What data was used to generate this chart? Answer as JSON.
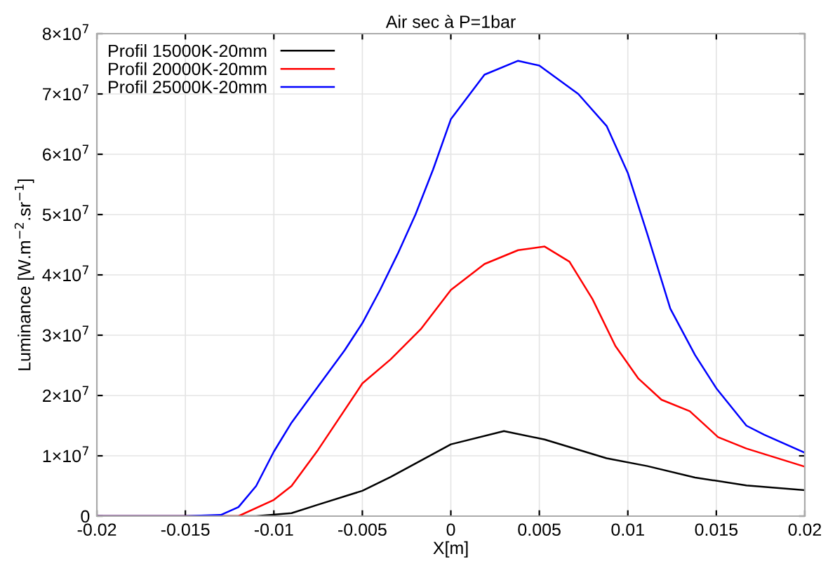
{
  "chart_data": {
    "type": "line",
    "title": "Air sec à P=1bar",
    "xlabel": "X[m]",
    "ylabel": "Luminance [W.m$^{−2}$.sr$^{−1}$]",
    "xlim": [
      -0.02,
      0.02
    ],
    "xticks": [
      -0.02,
      -0.015,
      -0.01,
      -0.005,
      0,
      0.005,
      0.01,
      0.015,
      0.02
    ],
    "ylim": [
      0,
      80000000
    ],
    "yticks": [
      0,
      {
        "value": 10000000,
        "label": "1×10$^{7}$"
      },
      {
        "value": 20000000,
        "label": "2×10$^{7}$"
      },
      {
        "value": 30000000,
        "label": "3×10$^{7}$"
      },
      {
        "value": 40000000,
        "label": "4×10$^{7}$"
      },
      {
        "value": 50000000,
        "label": "5×10$^{7}$"
      },
      {
        "value": 60000000,
        "label": "6×10$^{7}$"
      },
      {
        "value": 70000000,
        "label": "7×10$^{7}$"
      },
      {
        "value": 80000000,
        "label": "8×10$^{7}$"
      }
    ],
    "grid": true,
    "legend": "top left",
    "line_style": "solid",
    "series": [
      {
        "name": "Profil 15000K-20mm",
        "color": "#000000",
        "x": [
          -0.02,
          -0.015,
          -0.011,
          -0.009,
          -0.0075,
          -0.005,
          -0.0034,
          -0.0017,
          0,
          0.003,
          0.0053,
          0.0088,
          0.0111,
          0.0138,
          0.0167,
          0.02
        ],
        "values": [
          0,
          0,
          0,
          500000,
          1900000,
          4200000,
          6500000,
          9200000,
          11900000,
          14100000,
          12700000,
          9600000,
          8300000,
          6400000,
          5100000,
          4300000
        ]
      },
      {
        "name": "Profil 20000K-20mm",
        "color": "#ff0000",
        "x": [
          -0.02,
          -0.015,
          -0.012,
          -0.01,
          -0.009,
          -0.0075,
          -0.005,
          -0.0034,
          -0.0017,
          0,
          0.0019,
          0.0038,
          0.0053,
          0.0067,
          0.008,
          0.0093,
          0.0106,
          0.0119,
          0.0135,
          0.0151,
          0.0167,
          0.02
        ],
        "values": [
          0,
          0,
          0,
          2700000,
          5000000,
          11000000,
          22000000,
          26000000,
          31000000,
          37500000,
          41800000,
          44100000,
          44700000,
          42200000,
          36000000,
          28200000,
          22800000,
          19300000,
          17400000,
          13100000,
          11200000,
          8200000
        ]
      },
      {
        "name": "Profil 25000K-20mm",
        "color": "#0000ff",
        "x": [
          -0.02,
          -0.015,
          -0.013,
          -0.012,
          -0.011,
          -0.01,
          -0.009,
          -0.0075,
          -0.006,
          -0.005,
          -0.004,
          -0.003,
          -0.002,
          -0.001,
          0,
          0.0019,
          0.0038,
          0.005,
          0.0072,
          0.0088,
          0.01,
          0.0111,
          0.0124,
          0.0138,
          0.015,
          0.0167,
          0.0177,
          0.02
        ],
        "values": [
          0,
          0,
          200000,
          1500000,
          5000000,
          10700000,
          15500000,
          21500000,
          27500000,
          32000000,
          37500000,
          43500000,
          50000000,
          57500000,
          65800000,
          73200000,
          75500000,
          74700000,
          70000000,
          64700000,
          56900000,
          46800000,
          34400000,
          26700000,
          21200000,
          15000000,
          13500000,
          10500000
        ]
      }
    ]
  }
}
